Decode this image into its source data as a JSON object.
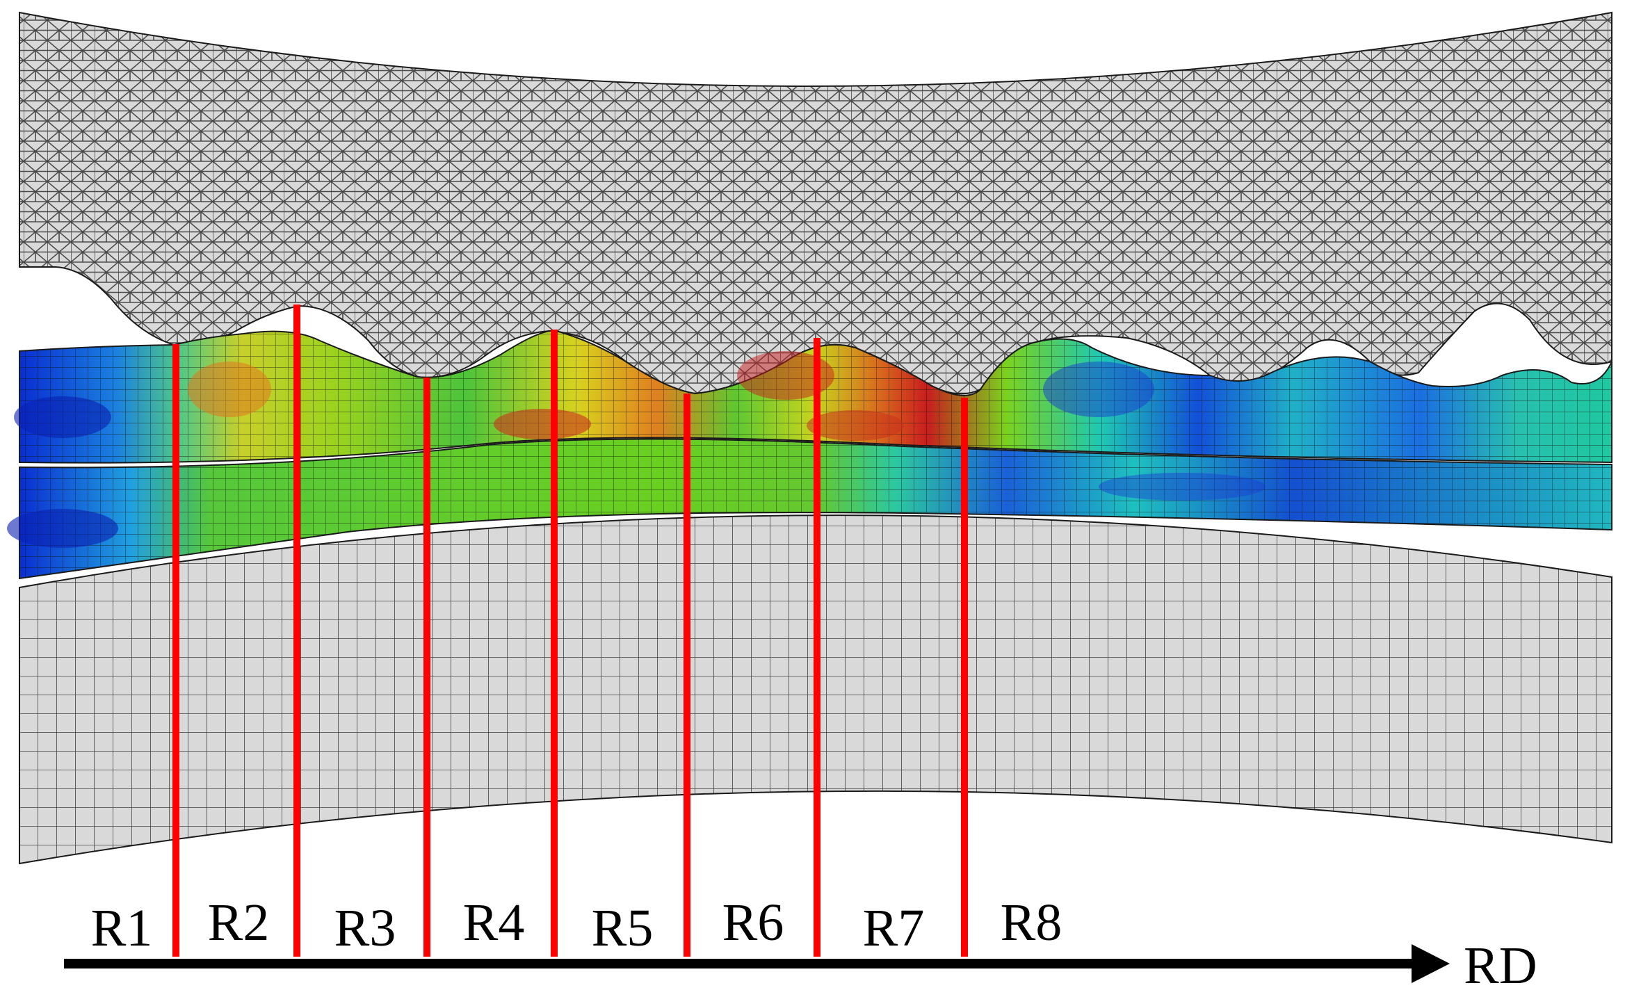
{
  "diagram": {
    "regions": [
      "R1",
      "R2",
      "R3",
      "R4",
      "R5",
      "R6",
      "R7",
      "R8"
    ],
    "direction_label": "RD"
  },
  "colors": {
    "tool_mesh_fill": "#d9d9d9",
    "mesh_line": "#1a1a1a",
    "section_line": "#ff0000",
    "arrow": "#000000",
    "contour_scale": [
      "#0018b4",
      "#0a5de0",
      "#18c3c8",
      "#3cc060",
      "#78d21e",
      "#d2d21e",
      "#e87f1c",
      "#c81e1e"
    ]
  },
  "icons": {
    "upper_tool": "upper-roll-mesh",
    "lower_tool": "lower-roll-mesh",
    "workpiece": "strip-contour-mesh",
    "direction_arrow": "arrow-right-icon"
  }
}
